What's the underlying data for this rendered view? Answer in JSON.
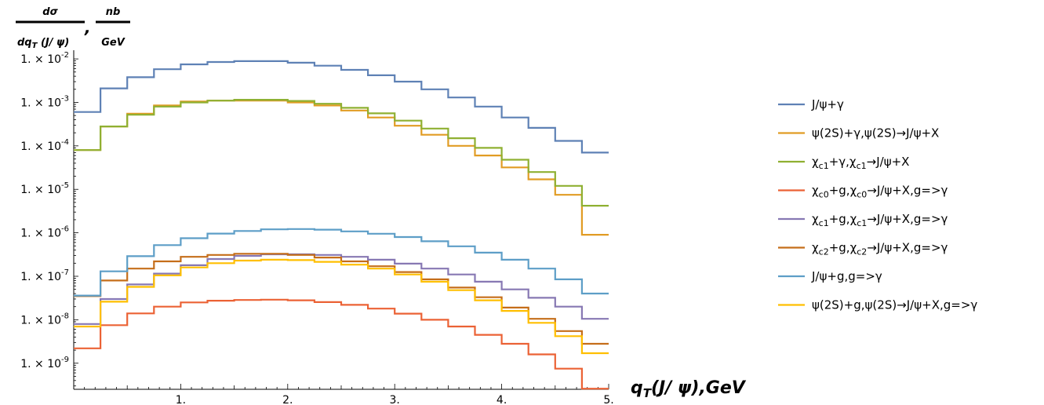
{
  "chart_data": {
    "type": "line",
    "style": "step",
    "y_scale": "log",
    "ylabel": {
      "frac1_num": "dσ",
      "frac1_den": "dq",
      "frac1_den_sub": "T",
      "frac1_den_rest": " (J/ ψ)",
      "separator": ",",
      "frac2_num": "nb",
      "frac2_den": "GeV"
    },
    "xlabel": {
      "main": "q",
      "sub": "T",
      "rest": "(J/ ψ),GeV"
    },
    "xlim": [
      0,
      5
    ],
    "ylim_exp": [
      -9.6,
      -1.8
    ],
    "x_ticks": [
      1,
      2,
      3,
      4,
      5
    ],
    "x_tick_labels": [
      "1.",
      "2.",
      "3.",
      "4.",
      "5."
    ],
    "y_ticks_exp": [
      -2,
      -3,
      -4,
      -5,
      -6,
      -7,
      -8,
      -9
    ],
    "y_tick_labels": [
      {
        "base": "1. × 10",
        "exp": "-2"
      },
      {
        "base": "1. × 10",
        "exp": "-3"
      },
      {
        "base": "1. × 10",
        "exp": "-4"
      },
      {
        "base": "1. × 10",
        "exp": "-5"
      },
      {
        "base": "1. × 10",
        "exp": "-6"
      },
      {
        "base": "1. × 10",
        "exp": "-7"
      },
      {
        "base": "1. × 10",
        "exp": "-8"
      },
      {
        "base": "1. × 10",
        "exp": "-9"
      }
    ],
    "bin_edges": [
      0,
      0.25,
      0.5,
      0.75,
      1.0,
      1.25,
      1.5,
      1.75,
      2.0,
      2.25,
      2.5,
      2.75,
      3.0,
      3.25,
      3.5,
      3.75,
      4.0,
      4.25,
      4.5,
      4.75,
      5.0
    ],
    "series": [
      {
        "name": "J/ψ+γ",
        "color": "#5E81B5",
        "values": [
          0.0006,
          0.0021,
          0.0038,
          0.0058,
          0.0075,
          0.0085,
          0.0089,
          0.0089,
          0.0082,
          0.007,
          0.0056,
          0.0042,
          0.003,
          0.002,
          0.0013,
          0.0008,
          0.00045,
          0.00026,
          0.00013,
          7e-05
        ]
      },
      {
        "name": "ψ(2S)+γ,ψ(2S)→J/ψ+X",
        "color": "#E19C24",
        "values": [
          8e-05,
          0.00028,
          0.00055,
          0.00085,
          0.00105,
          0.0011,
          0.0011,
          0.0011,
          0.001,
          0.00085,
          0.00065,
          0.00045,
          0.00029,
          0.00018,
          0.0001,
          6e-05,
          3.2e-05,
          1.7e-05,
          7.5e-06,
          9e-07
        ]
      },
      {
        "name": "χ",
        "name_sub": "c1",
        "name_rest": "+γ,χ",
        "name_sub2": "c1",
        "name_rest2": "→J/ψ+X",
        "color": "#8FB032",
        "values": [
          8e-05,
          0.00028,
          0.00052,
          0.0008,
          0.001,
          0.0011,
          0.00115,
          0.00115,
          0.00108,
          0.00093,
          0.00075,
          0.00056,
          0.00038,
          0.00025,
          0.00015,
          9e-05,
          4.8e-05,
          2.5e-05,
          1.2e-05,
          4.2e-06
        ]
      },
      {
        "name": "χ",
        "name_sub": "c0",
        "name_rest": "+g,χ",
        "name_sub2": "c0",
        "name_rest2": "→J/ψ+X,g=>γ",
        "color": "#EB6235",
        "values": [
          2.2e-09,
          7.5e-09,
          1.4e-08,
          2e-08,
          2.5e-08,
          2.75e-08,
          2.85e-08,
          2.9e-08,
          2.8e-08,
          2.55e-08,
          2.2e-08,
          1.8e-08,
          1.38e-08,
          1e-08,
          7e-09,
          4.5e-09,
          2.8e-09,
          1.6e-09,
          7.5e-10,
          2.6e-10
        ]
      },
      {
        "name": "χ",
        "name_sub": "c1",
        "name_rest": "+g,χ",
        "name_sub2": "c1",
        "name_rest2": "→J/ψ+X,g=>γ",
        "color": "#8778B3",
        "values": [
          8e-09,
          3e-08,
          6.5e-08,
          1.15e-07,
          1.8e-07,
          2.5e-07,
          2.95e-07,
          3.2e-07,
          3.2e-07,
          3.1e-07,
          2.8e-07,
          2.4e-07,
          1.95e-07,
          1.5e-07,
          1.1e-07,
          7.5e-08,
          5e-08,
          3.2e-08,
          2e-08,
          1.05e-08
        ]
      },
      {
        "name": "χ",
        "name_sub": "c2",
        "name_rest": "+g,χ",
        "name_sub2": "c2",
        "name_rest2": "→J/ψ+X,g=>γ",
        "color": "#C56E1A",
        "values": [
          3.5e-08,
          8e-08,
          1.5e-07,
          2.2e-07,
          2.8e-07,
          3.1e-07,
          3.3e-07,
          3.3e-07,
          3.1e-07,
          2.7e-07,
          2.2e-07,
          1.7e-07,
          1.25e-07,
          8.5e-08,
          5.5e-08,
          3.3e-08,
          1.9e-08,
          1.05e-08,
          5.5e-09,
          2.8e-09
        ]
      },
      {
        "name": "J/ψ+g,g=>γ",
        "color": "#5D9EC7",
        "values": [
          3.6e-08,
          1.3e-07,
          2.9e-07,
          5.2e-07,
          7.5e-07,
          9.6e-07,
          1.1e-06,
          1.2e-06,
          1.22e-06,
          1.18e-06,
          1.08e-06,
          9.5e-07,
          8e-07,
          6.4e-07,
          4.9e-07,
          3.5e-07,
          2.4e-07,
          1.5e-07,
          8.5e-08,
          4e-08
        ]
      },
      {
        "name": "ψ(2S)+g,ψ(2S)→J/ψ+X,g=>γ",
        "color": "#FFBF00",
        "values": [
          7e-09,
          2.6e-08,
          5.7e-08,
          1.05e-07,
          1.6e-07,
          2e-07,
          2.3e-07,
          2.4e-07,
          2.35e-07,
          2.15e-07,
          1.85e-07,
          1.5e-07,
          1.1e-07,
          7.5e-08,
          4.8e-08,
          2.8e-08,
          1.6e-08,
          8.5e-09,
          4.2e-09,
          1.7e-09
        ]
      }
    ],
    "legend_position": "right",
    "grid": false
  }
}
